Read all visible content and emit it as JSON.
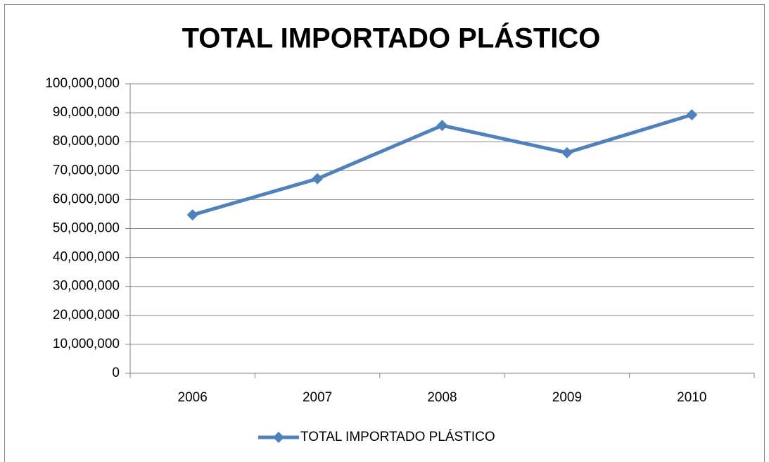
{
  "chart_data": {
    "type": "line",
    "title": "TOTAL IMPORTADO PLÁSTICO",
    "categories": [
      "2006",
      "2007",
      "2008",
      "2009",
      "2010"
    ],
    "series": [
      {
        "name": "TOTAL IMPORTADO PLÁSTICO",
        "color": "#4f81bd",
        "values": [
          54700000,
          67200000,
          85600000,
          76200000,
          89300000
        ]
      }
    ],
    "ylim": [
      0,
      100000000
    ],
    "yticks": [
      0,
      {
        "value": 10000000,
        "label": "10,000,000"
      },
      {
        "value": 20000000,
        "label": "20,000,000"
      },
      {
        "value": 30000000,
        "label": "30,000,000"
      },
      {
        "value": 40000000,
        "label": "40,000,000"
      },
      {
        "value": 50000000,
        "label": "50,000,000"
      },
      {
        "value": 60000000,
        "label": "60,000,000"
      },
      {
        "value": 70000000,
        "label": "70,000,000"
      },
      {
        "value": 80000000,
        "label": "80,000,000"
      },
      {
        "value": 90000000,
        "label": "90,000,000"
      },
      {
        "value": 100000000,
        "label": "100,000,000"
      }
    ],
    "grid": true,
    "legend": "bottom"
  }
}
